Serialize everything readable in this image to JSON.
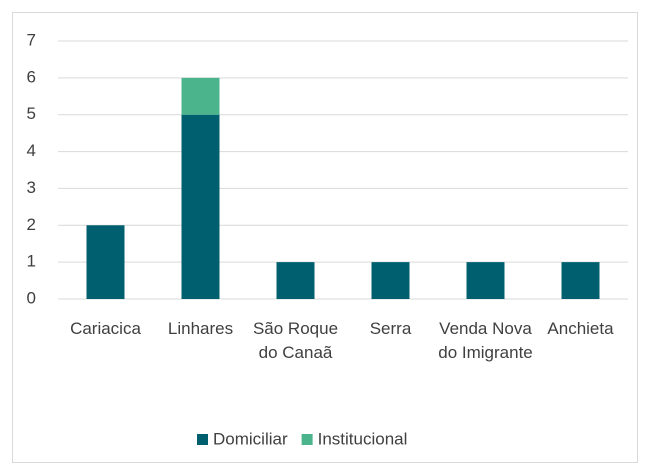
{
  "chart_data": {
    "type": "stacked_bar",
    "categories": [
      "Cariacica",
      "Linhares",
      "São Roque do Canaã",
      "Serra",
      "Venda Nova do Imigrante",
      "Anchieta"
    ],
    "series": [
      {
        "name": "Domiciliar",
        "color": "#005f6f",
        "values": [
          2,
          5,
          1,
          1,
          1,
          1
        ]
      },
      {
        "name": "Institucional",
        "color": "#4cb48c",
        "values": [
          0,
          1,
          0,
          0,
          0,
          0
        ]
      }
    ],
    "ylim": [
      0,
      7
    ],
    "yticks": [
      0,
      1,
      2,
      3,
      4,
      5,
      6,
      7
    ],
    "grid": true,
    "legend": "bottom"
  }
}
